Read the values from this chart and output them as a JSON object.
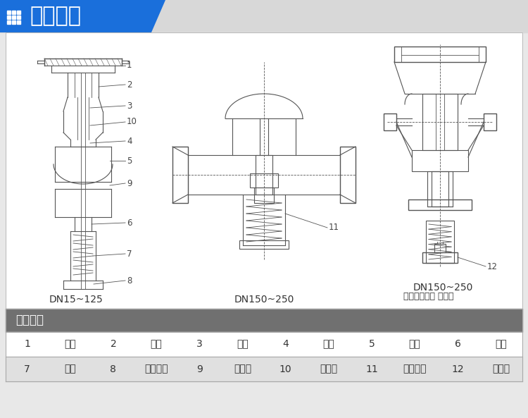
{
  "title": "尺寸数值",
  "title_bg": "#1A6FDB",
  "title_text_color": "#FFFFFF",
  "page_bg": "#E8E8E8",
  "content_bg": "#FFFFFF",
  "section_header": "结构简图",
  "section_header_bg": "#707070",
  "section_header_color": "#FFFFFF",
  "row1_bg": "#FFFFFF",
  "row2_bg": "#E0E0E0",
  "labels_row1": [
    "1",
    "阀体",
    "2",
    "阀座",
    "3",
    "阀轴",
    "4",
    "阀盖",
    "5",
    "膜盖",
    "6",
    "膜片"
  ],
  "labels_row2": [
    "7",
    "弹簧",
    "8",
    "调节螺母",
    "9",
    "导压管",
    "10",
    "波纹管",
    "11",
    "平衡膜片",
    "12",
    "充注阀"
  ],
  "diagram1_label": "DN15~125",
  "diagram2_label": "DN150~250",
  "diagram3_label1": "DN150~250",
  "diagram3_label2": "（带有阀体加 长体）",
  "line_color": "#555555",
  "callout_color": "#444444"
}
